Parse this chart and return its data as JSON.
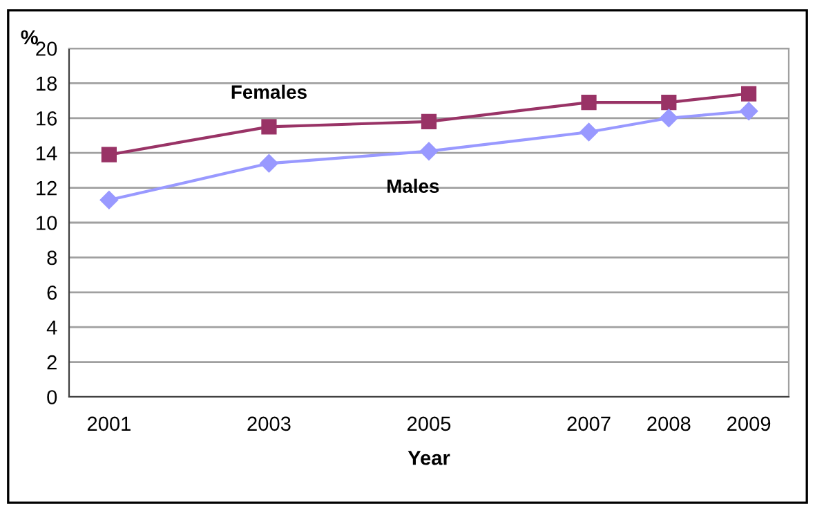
{
  "chart_data": {
    "type": "line",
    "ylabel": "%",
    "xlabel": "Year",
    "x": [
      2001,
      2003,
      2005,
      2007,
      2008,
      2009
    ],
    "series": [
      {
        "name": "Females",
        "color": "#993366",
        "marker": "square",
        "values": [
          13.9,
          15.5,
          15.8,
          16.9,
          16.9,
          17.4
        ]
      },
      {
        "name": "Males",
        "color": "#9999ff",
        "marker": "diamond",
        "values": [
          11.3,
          13.4,
          14.1,
          15.2,
          16.0,
          16.4
        ]
      }
    ],
    "xlim": [
      2000.5,
      2009.5
    ],
    "xticks": [
      2001,
      2003,
      2005,
      2007,
      2008,
      2009
    ],
    "ylim": [
      0,
      20
    ],
    "yticks": [
      0,
      2,
      4,
      6,
      8,
      10,
      12,
      14,
      16,
      18,
      20
    ],
    "grid": "y",
    "legend": false,
    "line_style": "solid"
  }
}
